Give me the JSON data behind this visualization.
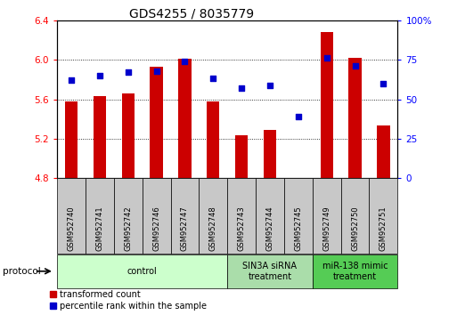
{
  "title": "GDS4255 / 8035779",
  "samples": [
    "GSM952740",
    "GSM952741",
    "GSM952742",
    "GSM952746",
    "GSM952747",
    "GSM952748",
    "GSM952743",
    "GSM952744",
    "GSM952745",
    "GSM952749",
    "GSM952750",
    "GSM952751"
  ],
  "transformed_count": [
    5.58,
    5.63,
    5.66,
    5.93,
    6.01,
    5.58,
    5.23,
    5.29,
    4.8,
    6.28,
    6.02,
    5.33
  ],
  "percentile_rank": [
    62,
    65,
    67,
    68,
    74,
    63,
    57,
    59,
    39,
    76,
    71,
    60
  ],
  "bar_bottom": 4.8,
  "ylim_left": [
    4.8,
    6.4
  ],
  "ylim_right": [
    0,
    100
  ],
  "yticks_left": [
    4.8,
    5.2,
    5.6,
    6.0,
    6.4
  ],
  "yticks_right": [
    0,
    25,
    50,
    75,
    100
  ],
  "ytick_labels_right": [
    "0",
    "25",
    "50",
    "75",
    "100%"
  ],
  "bar_color": "#cc0000",
  "dot_color": "#0000cc",
  "groups": [
    {
      "label": "control",
      "start": 0,
      "end": 6,
      "color": "#ccffcc"
    },
    {
      "label": "SIN3A siRNA\ntreatment",
      "start": 6,
      "end": 9,
      "color": "#aaddaa"
    },
    {
      "label": "miR-138 mimic\ntreatment",
      "start": 9,
      "end": 12,
      "color": "#55cc55"
    }
  ],
  "legend_items": [
    {
      "label": "transformed count",
      "color": "#cc0000"
    },
    {
      "label": "percentile rank within the sample",
      "color": "#0000cc"
    }
  ],
  "title_fontsize": 10,
  "tick_fontsize": 7.5,
  "sample_fontsize": 6,
  "group_fontsize": 7,
  "legend_fontsize": 7
}
